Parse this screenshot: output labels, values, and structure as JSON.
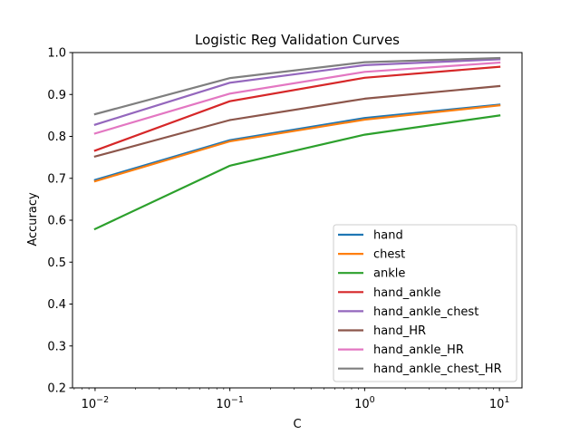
{
  "chart_data": {
    "type": "line",
    "title": "Logistic Reg Validation Curves",
    "xlabel": "C",
    "ylabel": "Accuracy",
    "xscale": "log",
    "x": [
      0.01,
      0.1,
      1,
      10
    ],
    "x_tick_labels": [
      {
        "base": "10",
        "exp": "−2",
        "value": 0.01
      },
      {
        "base": "10",
        "exp": "−1",
        "value": 0.1
      },
      {
        "base": "10",
        "exp": "0",
        "value": 1
      },
      {
        "base": "10",
        "exp": "1",
        "value": 10
      }
    ],
    "xlim": [
      0.0068,
      14.7
    ],
    "ylim": [
      0.2,
      1.0
    ],
    "y_ticks": [
      "0.2",
      "0.3",
      "0.4",
      "0.5",
      "0.6",
      "0.7",
      "0.8",
      "0.9",
      "1.0"
    ],
    "grid": false,
    "legend_position": "lower right",
    "series": [
      {
        "name": "hand",
        "color": "#1f77b4",
        "values": [
          0.696,
          0.791,
          0.844,
          0.876
        ]
      },
      {
        "name": "chest",
        "color": "#ff7f0e",
        "values": [
          0.693,
          0.788,
          0.84,
          0.874
        ]
      },
      {
        "name": "ankle",
        "color": "#2ca02c",
        "values": [
          0.579,
          0.73,
          0.804,
          0.85
        ]
      },
      {
        "name": "hand_ankle",
        "color": "#d62728",
        "values": [
          0.766,
          0.884,
          0.94,
          0.966
        ]
      },
      {
        "name": "hand_ankle_chest",
        "color": "#9467bd",
        "values": [
          0.828,
          0.928,
          0.97,
          0.984
        ]
      },
      {
        "name": "hand_HR",
        "color": "#8c564b",
        "values": [
          0.752,
          0.839,
          0.89,
          0.92
        ]
      },
      {
        "name": "hand_ankle_HR",
        "color": "#e377c2",
        "values": [
          0.807,
          0.902,
          0.954,
          0.976
        ]
      },
      {
        "name": "hand_ankle_chest_HR",
        "color": "#7f7f7f",
        "values": [
          0.853,
          0.939,
          0.977,
          0.987
        ]
      }
    ]
  }
}
